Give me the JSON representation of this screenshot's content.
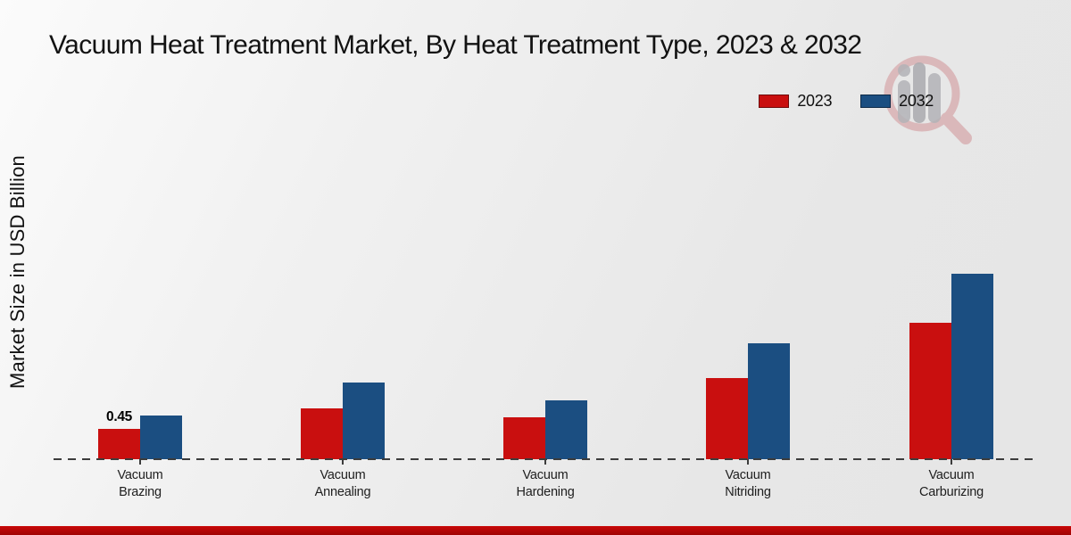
{
  "title": "Vacuum Heat Treatment Market, By Heat Treatment Type, 2023 & 2032",
  "y_axis_label": "Market Size in USD Billion",
  "legend": {
    "items": [
      {
        "label": "2023",
        "color": "#c90f0f"
      },
      {
        "label": "2032",
        "color": "#1b4e81"
      }
    ]
  },
  "chart_data": {
    "type": "bar",
    "title": "Vacuum Heat Treatment Market, By Heat Treatment Type, 2023 & 2032",
    "xlabel": "",
    "ylabel": "Market Size in USD Billion",
    "categories": [
      "Vacuum Brazing",
      "Vacuum Annealing",
      "Vacuum Hardening",
      "Vacuum Nitriding",
      "Vacuum Carburizing"
    ],
    "series": [
      {
        "name": "2023",
        "color": "#c90f0f",
        "values": [
          0.45,
          0.76,
          0.63,
          1.22,
          2.05
        ]
      },
      {
        "name": "2032",
        "color": "#1b4e81",
        "values": [
          0.66,
          1.15,
          0.88,
          1.75,
          2.79
        ]
      }
    ],
    "data_labels": [
      {
        "series_index": 0,
        "category_index": 0,
        "text": "0.45"
      }
    ],
    "ylim": [
      0,
      3
    ],
    "grid": false,
    "legend_position": "top-right",
    "baseline_style": "dashed",
    "bar_value_unit": "USD Billion"
  },
  "watermark": {
    "name": "magnifier-bar-chart-logo",
    "ring_color": "#cf8b8f",
    "bars_color": "#b3b3b7"
  },
  "footer": {
    "accent_color": "#c90808"
  }
}
